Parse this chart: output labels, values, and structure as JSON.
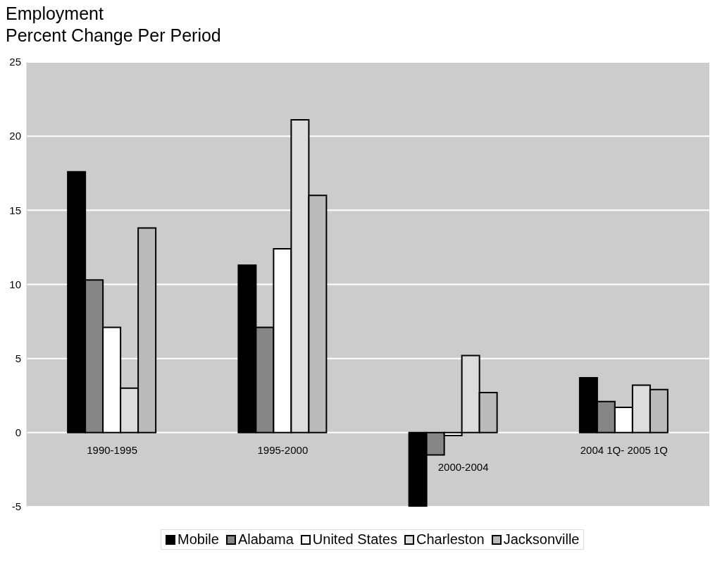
{
  "chart_data": {
    "type": "bar",
    "title": "Employment",
    "subtitle": "Percent Change Per Period",
    "categories": [
      "1990-1995",
      "1995-2000",
      "2000-2004",
      "2004 1Q- 2005 1Q"
    ],
    "series": [
      {
        "name": "Mobile",
        "color": "#000000",
        "values": [
          17.6,
          11.3,
          -5.0,
          3.7
        ]
      },
      {
        "name": "Alabama",
        "color": "#868686",
        "values": [
          10.3,
          7.1,
          -1.5,
          2.1
        ]
      },
      {
        "name": "United States",
        "color": "#ffffff",
        "values": [
          7.1,
          12.4,
          -0.2,
          1.7
        ]
      },
      {
        "name": "Charleston",
        "color": "#dddddd",
        "values": [
          3.0,
          21.1,
          5.2,
          3.2
        ]
      },
      {
        "name": "Jacksonville",
        "color": "#bbbbbb",
        "values": [
          13.8,
          16.0,
          2.7,
          2.9
        ]
      }
    ],
    "ylim": [
      -5,
      25
    ],
    "yticks": [
      -5,
      0,
      5,
      10,
      15,
      20,
      25
    ],
    "grid": "y",
    "legend": "bottom"
  }
}
